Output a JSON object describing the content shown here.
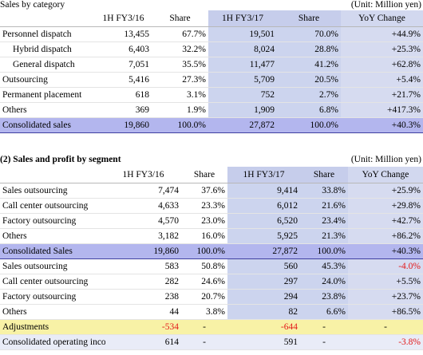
{
  "section1": {
    "title": "Sales by category",
    "unit": "(Unit:  Million yen)",
    "headers": [
      "",
      "1H FY3/16",
      "Share",
      "1H FY3/17",
      "Share",
      "YoY Change"
    ],
    "rows": [
      {
        "label": "Personnel dispatch",
        "v16": "13,455",
        "s16": "67.7%",
        "v17": "19,501",
        "s17": "70.0%",
        "yoy": "+44.9%"
      },
      {
        "label": "Hybrid dispatch",
        "v16": "6,403",
        "s16": "32.2%",
        "v17": "8,024",
        "s17": "28.8%",
        "yoy": "+25.3%"
      },
      {
        "label": "General dispatch",
        "v16": "7,051",
        "s16": "35.5%",
        "v17": "11,477",
        "s17": "41.2%",
        "yoy": "+62.8%"
      },
      {
        "label": "Outsourcing",
        "v16": "5,416",
        "s16": "27.3%",
        "v17": "5,709",
        "s17": "20.5%",
        "yoy": "+5.4%"
      },
      {
        "label": "Permanent placement",
        "v16": "618",
        "s16": "3.1%",
        "v17": "752",
        "s17": "2.7%",
        "yoy": "+21.7%"
      },
      {
        "label": "Others",
        "v16": "369",
        "s16": "1.9%",
        "v17": "1,909",
        "s17": "6.8%",
        "yoy": "+417.3%"
      }
    ],
    "total": {
      "label": "Consolidated sales",
      "v16": "19,860",
      "s16": "100.0%",
      "v17": "27,872",
      "s17": "100.0%",
      "yoy": "+40.3%"
    }
  },
  "section2": {
    "title": "(2) Sales and profit by segment",
    "unit": "(Unit:  Million yen)",
    "headers": [
      "",
      "1H FY3/16",
      "Share",
      "1H FY3/17",
      "Share",
      "YoY Change"
    ],
    "sales_rows": [
      {
        "label": "Sales outsourcing",
        "v16": "7,474",
        "s16": "37.6%",
        "v17": "9,414",
        "s17": "33.8%",
        "yoy": "+25.9%"
      },
      {
        "label": "Call center outsourcing",
        "v16": "4,633",
        "s16": "23.3%",
        "v17": "6,012",
        "s17": "21.6%",
        "yoy": "+29.8%"
      },
      {
        "label": "Factory outsourcing",
        "v16": "4,570",
        "s16": "23.0%",
        "v17": "6,520",
        "s17": "23.4%",
        "yoy": "+42.7%"
      },
      {
        "label": "Others",
        "v16": "3,182",
        "s16": "16.0%",
        "v17": "5,925",
        "s17": "21.3%",
        "yoy": "+86.2%"
      }
    ],
    "sales_total": {
      "label": "Consolidated Sales",
      "v16": "19,860",
      "s16": "100.0%",
      "v17": "27,872",
      "s17": "100.0%",
      "yoy": "+40.3%"
    },
    "profit_rows": [
      {
        "label": "Sales outsourcing",
        "v16": "583",
        "s16": "50.8%",
        "v17": "560",
        "s17": "45.3%",
        "yoy": "-4.0%",
        "neg": true
      },
      {
        "label": "Call center outsourcing",
        "v16": "282",
        "s16": "24.6%",
        "v17": "297",
        "s17": "24.0%",
        "yoy": "+5.5%"
      },
      {
        "label": "Factory outsourcing",
        "v16": "238",
        "s16": "20.7%",
        "v17": "294",
        "s17": "23.8%",
        "yoy": "+23.7%"
      },
      {
        "label": "Others",
        "v16": "44",
        "s16": "3.8%",
        "v17": "82",
        "s17": "6.6%",
        "yoy": "+86.5%"
      }
    ],
    "adjustments": {
      "label": "Adjustments",
      "v16": "-534",
      "s16": "-",
      "v17": "-644",
      "s17": "-",
      "yoy": "-"
    },
    "operating_income": {
      "label": "Consolidated operating income",
      "v16": "614",
      "s16": "-",
      "v17": "591",
      "s17": "-",
      "yoy": "-3.8%"
    }
  },
  "colors": {
    "highlight_header": "#c6cdeb",
    "total_row": "#b3b6ee",
    "adjustments_row": "#f8f2a6",
    "negative": "#e31a1a"
  }
}
